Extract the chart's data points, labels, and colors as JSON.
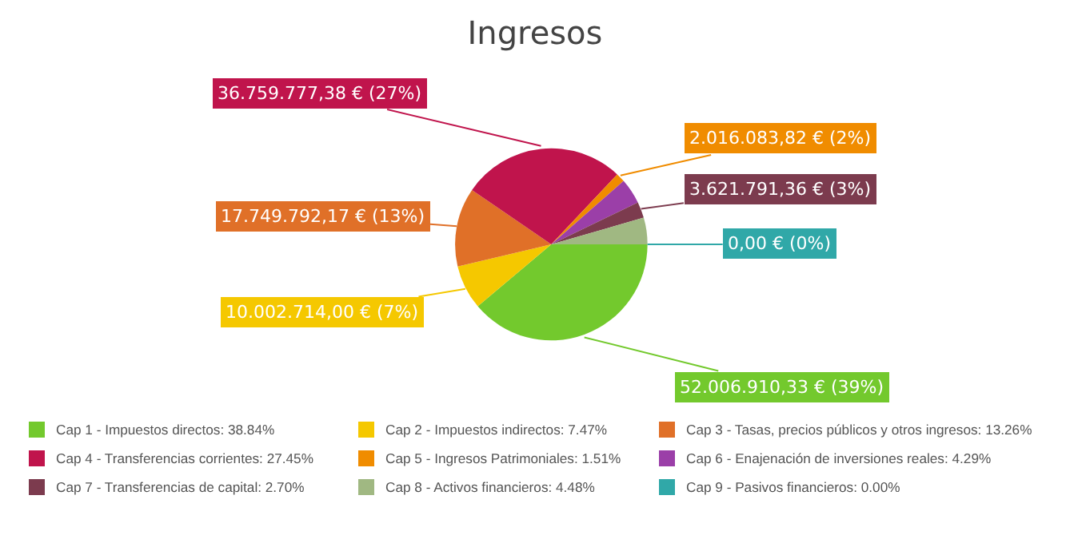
{
  "chart_data": {
    "type": "pie",
    "title": "Ingresos",
    "categories": [
      "Cap 1 - Impuestos directos: 38.84%",
      "Cap 2 - Impuestos indirectos: 7.47%",
      "Cap 3 - Tasas, precios públicos y otros ingresos: 13.26%",
      "Cap 4 - Transferencias corrientes: 27.45%",
      "Cap 5 - Ingresos Patrimoniales: 1.51%",
      "Cap 6 - Enajenación de inversiones reales: 4.29%",
      "Cap 7 - Transferencias de capital: 2.70%",
      "Cap 8 - Activos financieros: 4.48%",
      "Cap 9 - Pasivos financieros: 0.00%"
    ],
    "values": [
      38.84,
      7.47,
      13.26,
      27.45,
      1.51,
      4.29,
      2.7,
      4.48,
      0
    ],
    "colors": [
      "#73c92d",
      "#f5c800",
      "#e07028",
      "#c0144c",
      "#f08c00",
      "#9b3fa8",
      "#7c3b4e",
      "#a0b882",
      "#30a8a8"
    ],
    "value_labels": [
      "52.006.910,33 € (39%)",
      "10.002.714,00 € (7%)",
      "17.749.792,17 € (13%)",
      "36.759.777,38 € (27%)",
      "2.016.083,82 € (2%)",
      null,
      "3.621.791,36 € (3%)",
      null,
      "0,00 € (0%)"
    ],
    "legend": "bottom"
  }
}
